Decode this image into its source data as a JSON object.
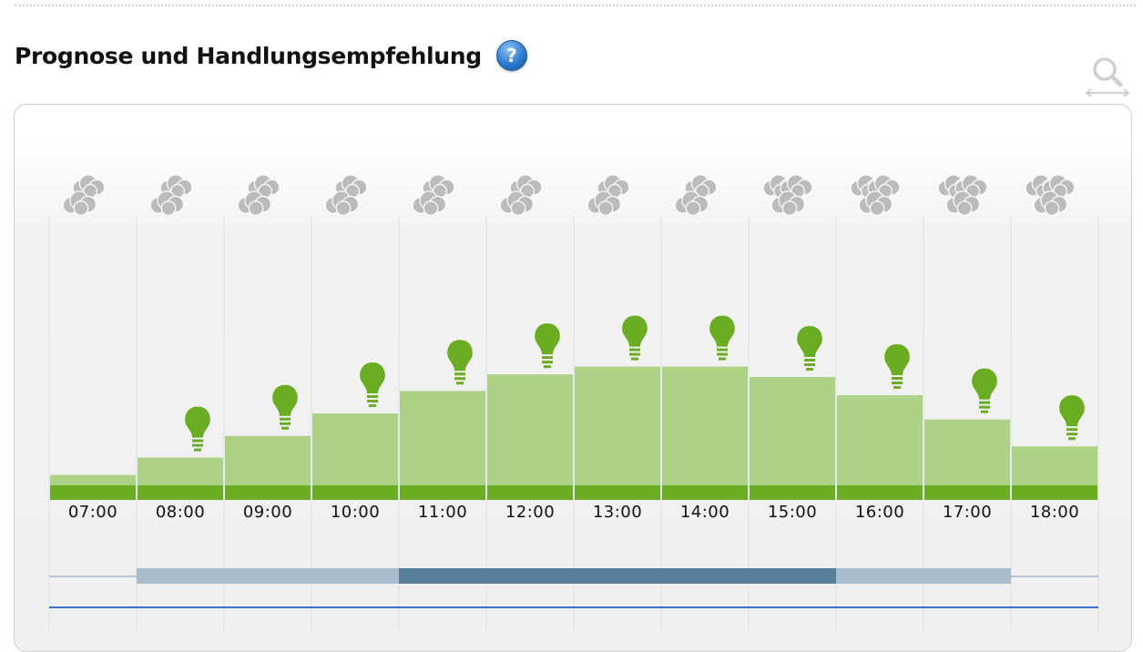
{
  "header": {
    "title": "Prognose und Handlungsempfehlung",
    "help_icon": "question-mark-icon",
    "help_symbol": "?",
    "zoom_icon": "zoom-horizontal-icon"
  },
  "colors": {
    "bar_fill": "#add185",
    "bar_base": "#6aad23",
    "bulb": "#6aad23",
    "cloud": "#bcbcbc",
    "band_light": "#a9bccb",
    "band_dark": "#587f99",
    "line_blue": "#3e6fd0"
  },
  "chart_data": {
    "type": "bar",
    "categories": [
      "07:00",
      "08:00",
      "09:00",
      "10:00",
      "11:00",
      "12:00",
      "13:00",
      "14:00",
      "15:00",
      "16:00",
      "17:00",
      "18:00"
    ],
    "values": [
      12,
      32,
      57,
      83,
      109,
      128,
      137,
      137,
      125,
      104,
      76,
      45
    ],
    "ylim": [
      0,
      180
    ],
    "grid": "vertical",
    "weather_icons": [
      "cloud-cover-medium",
      "cloud-cover-medium",
      "cloud-cover-medium",
      "cloud-cover-medium",
      "cloud-cover-medium",
      "cloud-cover-medium",
      "cloud-cover-medium",
      "cloud-cover-medium",
      "cloud-cover-heavy",
      "cloud-cover-heavy",
      "cloud-cover-heavy",
      "cloud-cover-heavy"
    ],
    "recommendation_icons": [
      "none",
      "bulb-icon",
      "bulb-icon",
      "bulb-icon",
      "bulb-icon",
      "bulb-icon",
      "bulb-icon",
      "bulb-icon",
      "bulb-icon",
      "bulb-icon",
      "bulb-icon",
      "bulb-icon"
    ],
    "recommendation_band": [
      {
        "from": "08:00",
        "to": "11:00",
        "level": "light"
      },
      {
        "from": "11:00",
        "to": "16:00",
        "level": "dark"
      },
      {
        "from": "16:00",
        "to": "18:00",
        "level": "light"
      }
    ]
  }
}
